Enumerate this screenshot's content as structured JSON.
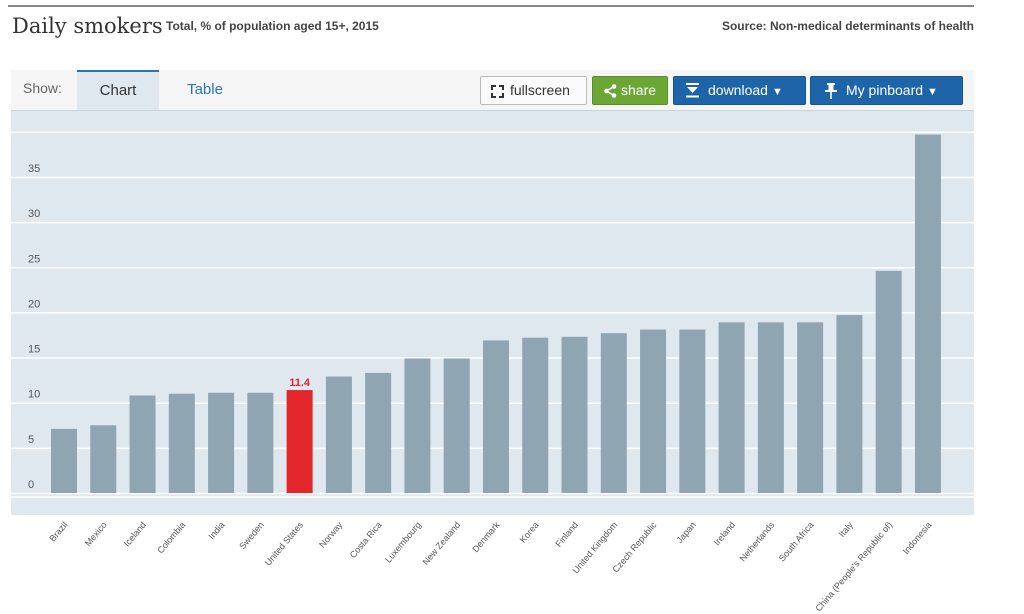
{
  "header": {
    "title": "Daily smokers",
    "subtitle": "Total, % of population aged 15+, 2015",
    "source": "Source: Non-medical determinants of health"
  },
  "toolbar": {
    "show_label": "Show:",
    "tabs": [
      {
        "label": "Chart",
        "active": true
      },
      {
        "label": "Table",
        "active": false
      }
    ],
    "fullscreen_label": "fullscreen",
    "share_label": "share",
    "download_label": "download",
    "pinboard_label": "My pinboard"
  },
  "colors": {
    "bar": "#8fa5b2",
    "highlight": "#e3262c",
    "plot_background": "#dfe8ef",
    "share": "#6ca736",
    "primary": "#1e64a8"
  },
  "chart_data": {
    "type": "bar",
    "categories": [
      "Brazil",
      "Mexico",
      "Iceland",
      "Colombia",
      "India",
      "Sweden",
      "United States",
      "Norway",
      "Costa Rica",
      "Luxembourg",
      "New Zealand",
      "Denmark",
      "Korea",
      "Finland",
      "United Kingdom",
      "Czech Republic",
      "Japan",
      "Ireland",
      "Netherlands",
      "South Africa",
      "Italy",
      "China (People's Republic of)",
      "Indonesia"
    ],
    "values": [
      7.1,
      7.5,
      10.8,
      11.0,
      11.1,
      11.1,
      11.4,
      12.9,
      13.3,
      14.9,
      14.9,
      16.9,
      17.2,
      17.3,
      17.7,
      18.1,
      18.1,
      18.9,
      18.9,
      18.9,
      19.7,
      24.6,
      39.7
    ],
    "highlight": {
      "category": "United States",
      "label": "11.4"
    },
    "yticks": [
      0,
      5,
      10,
      15,
      20,
      25,
      30,
      35
    ],
    "ylim": [
      0,
      41
    ],
    "grid": true,
    "legend": "none"
  }
}
